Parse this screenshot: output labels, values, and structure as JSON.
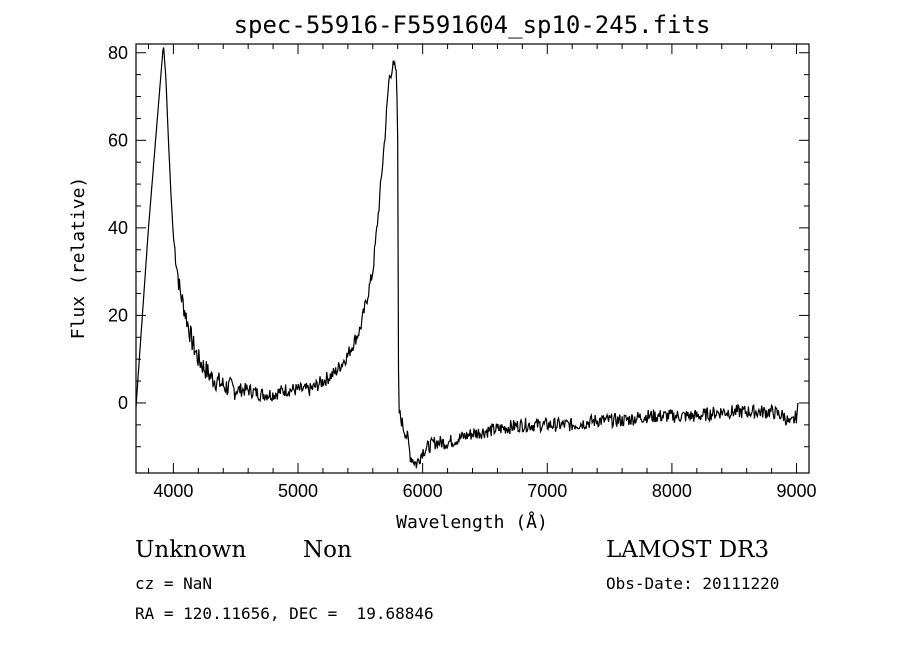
{
  "title": "spec-55916-F5591604_sp10-245.fits",
  "info": {
    "class_label": "Unknown",
    "subclass_label": "Non",
    "survey": "LAMOST DR3",
    "cz": "cz = NaN",
    "obs_date": "Obs-Date: 20111220",
    "coords": "RA = 120.11656, DEC =  19.68846"
  },
  "chart_data": {
    "type": "line",
    "xlabel": "Wavelength (Å)",
    "ylabel": "Flux (relative)",
    "xlim": [
      3700,
      9100
    ],
    "ylim": [
      -16,
      82
    ],
    "xticks": [
      4000,
      5000,
      6000,
      7000,
      8000,
      9000
    ],
    "yticks": [
      0,
      20,
      40,
      60,
      80
    ],
    "grid": false,
    "line_color": "#000000",
    "series": [
      {
        "x": [
          3700,
          3800,
          3900,
          3920,
          3940,
          3960,
          3980,
          4000,
          4050,
          4100,
          4150,
          4200,
          4300,
          4400,
          4500,
          4600,
          4700,
          4800,
          4900,
          5000,
          5100,
          5200,
          5300,
          5400,
          5500,
          5600,
          5650,
          5700,
          5730,
          5760,
          5790,
          5800,
          5805,
          5810,
          5830,
          5850,
          5880,
          5900,
          5950,
          6000,
          6100,
          6200,
          6300,
          6400,
          6600,
          6800,
          7000,
          7200,
          7400,
          7600,
          7800,
          8000,
          8200,
          8400,
          8600,
          8800,
          8900,
          8950,
          9000,
          9020
        ],
        "y": [
          -1,
          40,
          75,
          82,
          74,
          60,
          48,
          38,
          26,
          20,
          14,
          10,
          6,
          4,
          3,
          3,
          2,
          2,
          3,
          3,
          3,
          5,
          7,
          11,
          17,
          30,
          45,
          62,
          74,
          77,
          76,
          60,
          10,
          -2,
          -4,
          -6,
          -8,
          -12,
          -14,
          -11,
          -9,
          -9,
          -8,
          -7,
          -6,
          -5,
          -5,
          -5,
          -4,
          -4,
          -3,
          -3,
          -3,
          -2,
          -2,
          -2,
          -3,
          -5,
          -3,
          0
        ]
      }
    ]
  }
}
